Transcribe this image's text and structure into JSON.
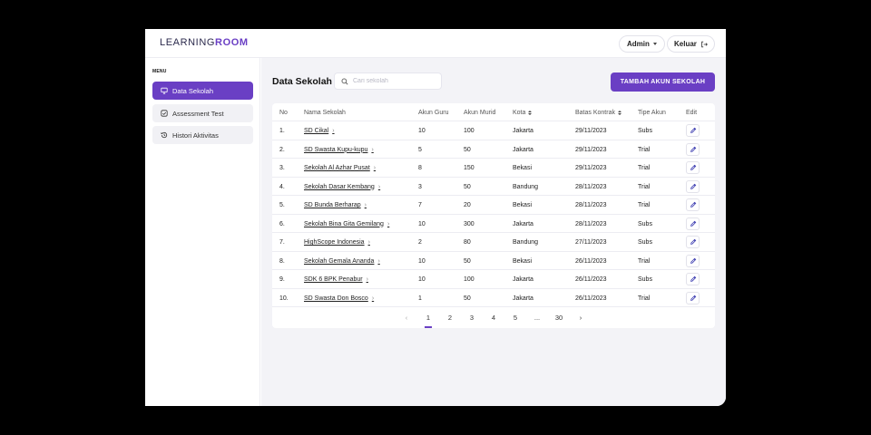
{
  "app": {
    "logo_text": "LEARNING",
    "logo_accent": "ROOM",
    "accent_color": "#6a3fc4"
  },
  "header": {
    "user_label": "Admin",
    "logout_label": "Keluar"
  },
  "sidebar": {
    "menu_label": "MENU",
    "items": [
      {
        "label": "Data Sekolah",
        "icon": "monitor-icon",
        "active": true
      },
      {
        "label": "Assessment Test",
        "icon": "checkbox-icon",
        "active": false
      },
      {
        "label": "Histori Aktivitas",
        "icon": "history-icon",
        "active": false
      }
    ]
  },
  "main": {
    "title": "Data Sekolah",
    "search_placeholder": "Cari sekolah",
    "add_button_label": "TAMBAH AKUN SEKOLAH"
  },
  "table": {
    "columns": [
      "No",
      "Nama Sekolah",
      "Akun Guru",
      "Akun Murid",
      "Kota",
      "Batas Kontrak",
      "Tipe Akun",
      "Edit"
    ],
    "rows": [
      {
        "no": "1.",
        "name": "SD Cikal",
        "guru": "10",
        "murid": "100",
        "kota": "Jakarta",
        "batas": "29/11/2023",
        "tipe": "Subs"
      },
      {
        "no": "2.",
        "name": "SD Swasta Kupu-kupu",
        "guru": "5",
        "murid": "50",
        "kota": "Jakarta",
        "batas": "29/11/2023",
        "tipe": "Trial"
      },
      {
        "no": "3.",
        "name": "Sekolah Al Azhar Pusat",
        "guru": "8",
        "murid": "150",
        "kota": "Bekasi",
        "batas": "29/11/2023",
        "tipe": "Trial"
      },
      {
        "no": "4.",
        "name": "Sekolah Dasar Kembang",
        "guru": "3",
        "murid": "50",
        "kota": "Bandung",
        "batas": "28/11/2023",
        "tipe": "Trial"
      },
      {
        "no": "5.",
        "name": "SD Bunda Berharap",
        "guru": "7",
        "murid": "20",
        "kota": "Bekasi",
        "batas": "28/11/2023",
        "tipe": "Trial"
      },
      {
        "no": "6.",
        "name": "Sekolah Bina Gita Gemilang",
        "guru": "10",
        "murid": "300",
        "kota": "Jakarta",
        "batas": "28/11/2023",
        "tipe": "Subs"
      },
      {
        "no": "7.",
        "name": "HighScope Indonesia",
        "guru": "2",
        "murid": "80",
        "kota": "Bandung",
        "batas": "27/11/2023",
        "tipe": "Subs"
      },
      {
        "no": "8.",
        "name": "Sekolah Gemala Ananda",
        "guru": "10",
        "murid": "50",
        "kota": "Bekasi",
        "batas": "26/11/2023",
        "tipe": "Trial"
      },
      {
        "no": "9.",
        "name": "SDK 6 BPK Penabur",
        "guru": "10",
        "murid": "100",
        "kota": "Jakarta",
        "batas": "26/11/2023",
        "tipe": "Subs"
      },
      {
        "no": "10.",
        "name": "SD Swasta Don Bosco",
        "guru": "1",
        "murid": "50",
        "kota": "Jakarta",
        "batas": "26/11/2023",
        "tipe": "Trial"
      }
    ]
  },
  "pagination": {
    "prev": "‹",
    "pages": [
      "1",
      "2",
      "3",
      "4",
      "5",
      "...",
      "30"
    ],
    "current": "1",
    "next": "›"
  }
}
